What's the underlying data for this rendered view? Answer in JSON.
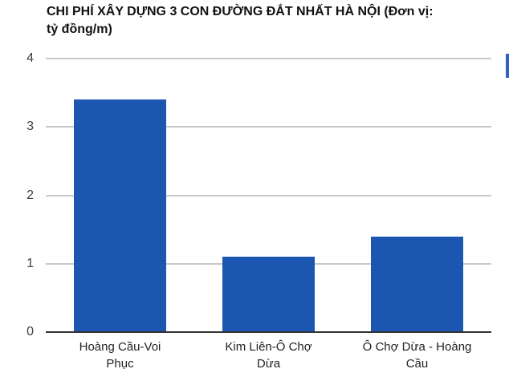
{
  "chart_data": {
    "type": "bar",
    "title": "CHI PHÍ XÂY DỰNG 3 CON ĐƯỜNG ĐẮT NHẤT HÀ NỘI (Đơn vị: tỷ đồng/m)",
    "title_lines": [
      "CHI PHÍ XÂY DỰNG 3 CON ĐƯỜNG ĐẮT NHẤT HÀ NỘI (Đơn vị:",
      "tỷ đồng/m)"
    ],
    "unit": "tỷ đồng/m",
    "categories": [
      "Hoàng Cầu-Voi Phục",
      "Kim Liên-Ô Chợ Dừa",
      "Ô Chợ Dừa - Hoàng Cầu"
    ],
    "categories_wrapped": [
      [
        "Hoàng Cầu-Voi",
        "Phục"
      ],
      [
        "Kim Liên-Ô Chợ",
        "Dừa"
      ],
      [
        "Ô Chợ Dừa - Hoàng",
        "Cầu"
      ]
    ],
    "values": [
      3.4,
      1.1,
      1.4
    ],
    "xlabel": "",
    "ylabel": "",
    "ylim": [
      0,
      4
    ],
    "yticks": [
      0,
      1,
      2,
      3,
      4
    ],
    "grid": true,
    "legend_position": "none",
    "bar_color": "#1d56b0",
    "gridline_color": "#c9c9c9",
    "axis_color": "#333333"
  },
  "ui": {
    "scroll_fragment_color": "#2e63c6"
  }
}
